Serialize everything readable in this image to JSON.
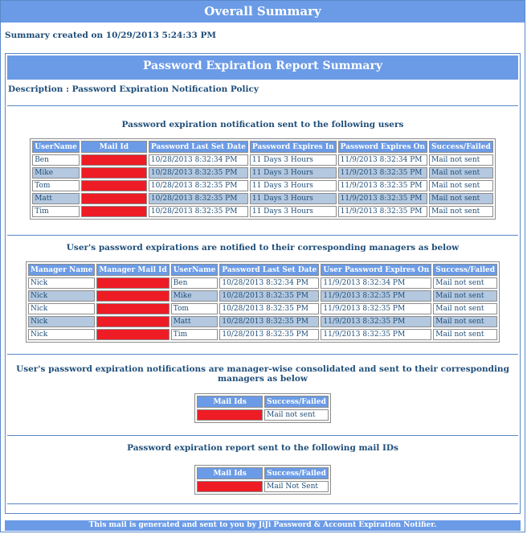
{
  "header": {
    "title": "Overall Summary",
    "created": "Summary created on 10/29/2013 5:24:33 PM"
  },
  "report": {
    "title": "Password Expiration Report Summary",
    "description": "Description : Password Expiration Notification Policy"
  },
  "section1": {
    "title": "Password expiration notification sent to the following users",
    "headers": [
      "UserName",
      "Mail Id",
      "Password Last Set Date",
      "Password Expires In",
      "Password Expires On",
      "Success/Failed"
    ],
    "rows": [
      [
        "Ben",
        "",
        "10/28/2013 8:32:34 PM",
        "11 Days 3 Hours",
        "11/9/2013 8:32:34 PM",
        "Mail not sent"
      ],
      [
        "Mike",
        "",
        "10/28/2013 8:32:35 PM",
        "11 Days 3 Hours",
        "11/9/2013 8:32:35 PM",
        "Mail not sent"
      ],
      [
        "Tom",
        "",
        "10/28/2013 8:32:35 PM",
        "11 Days 3 Hours",
        "11/9/2013 8:32:35 PM",
        "Mail not sent"
      ],
      [
        "Matt",
        "",
        "10/28/2013 8:32:35 PM",
        "11 Days 3 Hours",
        "11/9/2013 8:32:35 PM",
        "Mail not sent"
      ],
      [
        "Tim",
        "",
        "10/28/2013 8:32:35 PM",
        "11 Days 3 Hours",
        "11/9/2013 8:32:35 PM",
        "Mail not sent"
      ]
    ]
  },
  "section2": {
    "title": "User's password expirations are notified to their corresponding managers as below",
    "headers": [
      "Manager Name",
      "Manager Mail Id",
      "UserName",
      "Password Last Set Date",
      "User Password Expires On",
      "Success/Failed"
    ],
    "rows": [
      [
        "Nick",
        "",
        "Ben",
        "10/28/2013 8:32:34 PM",
        "11/9/2013 8:32:34 PM",
        "Mail not sent"
      ],
      [
        "Nick",
        "",
        "Mike",
        "10/28/2013 8:32:35 PM",
        "11/9/2013 8:32:35 PM",
        "Mail not sent"
      ],
      [
        "Nick",
        "",
        "Tom",
        "10/28/2013 8:32:35 PM",
        "11/9/2013 8:32:35 PM",
        "Mail not sent"
      ],
      [
        "Nick",
        "",
        "Matt",
        "10/28/2013 8:32:35 PM",
        "11/9/2013 8:32:35 PM",
        "Mail not sent"
      ],
      [
        "Nick",
        "",
        "Tim",
        "10/28/2013 8:32:35 PM",
        "11/9/2013 8:32:35 PM",
        "Mail not sent"
      ]
    ]
  },
  "section3": {
    "title": "User's password expiration notifications are manager-wise consolidated and sent to their corresponding managers as below",
    "headers": [
      "Mail Ids",
      "Success/Failed"
    ],
    "rows": [
      [
        "",
        "Mail not sent"
      ]
    ]
  },
  "section4": {
    "title": "Password expiration report sent to the following mail IDs",
    "headers": [
      "Mail Ids",
      "Success/Failed"
    ],
    "rows": [
      [
        "",
        "Mail Not Sent"
      ]
    ]
  },
  "footer": {
    "text": "This mail is generated and sent to you by JiJi Password & Account Expiration Notifier."
  },
  "colors": {
    "header_bar": "#6b9be6",
    "alt_row": "#b4c8df",
    "redacted": "#ee1c25",
    "text": "#1f4e79"
  }
}
